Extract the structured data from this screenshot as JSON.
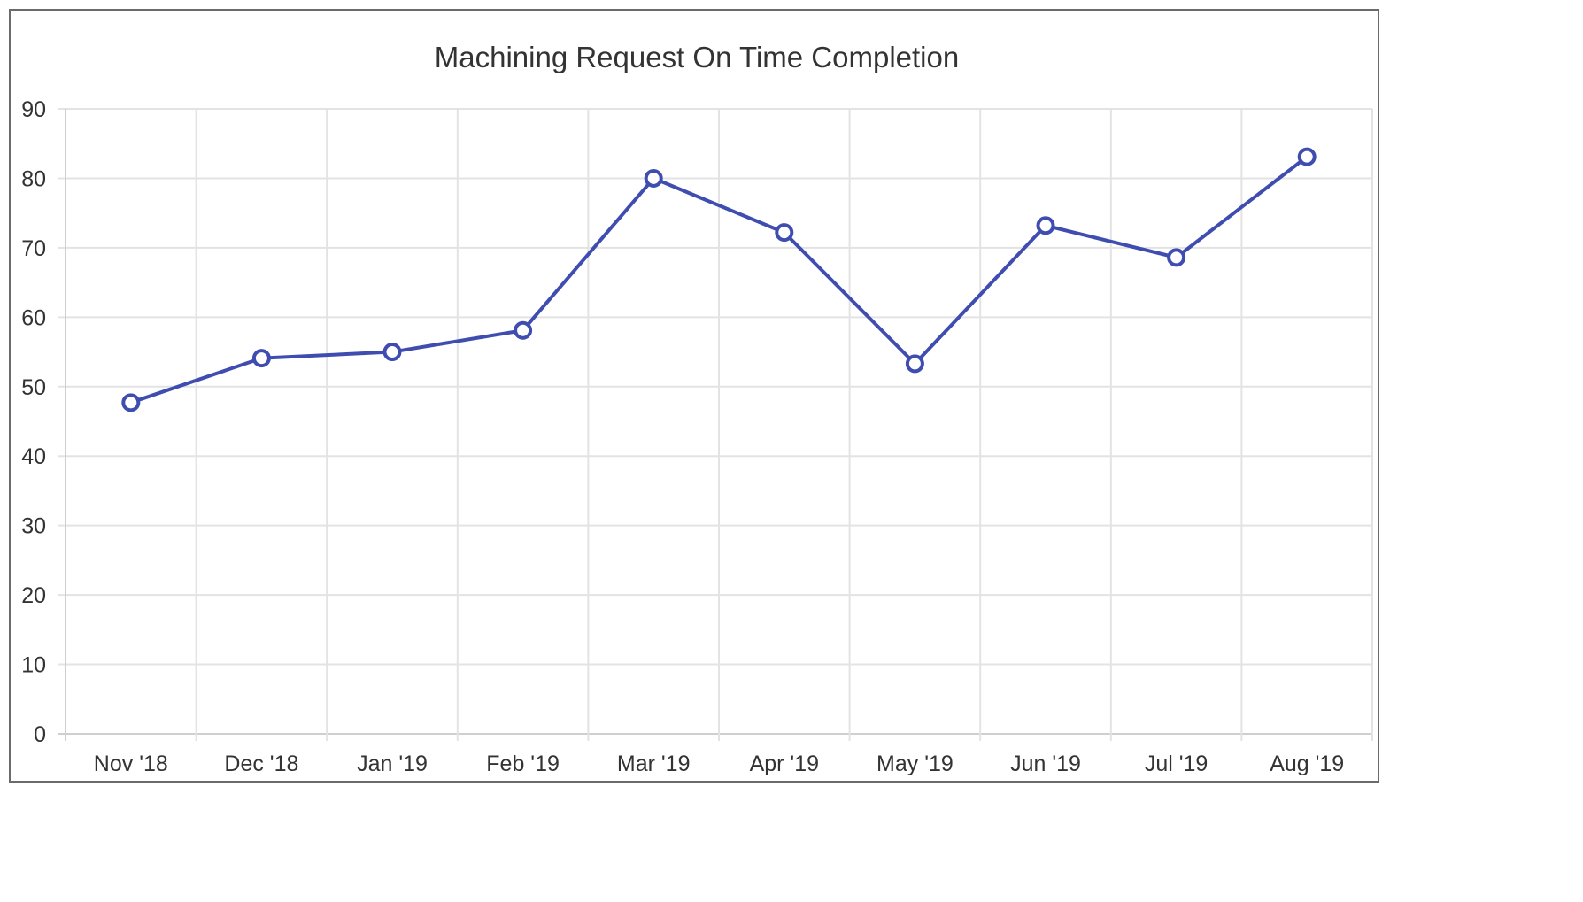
{
  "chart_data": {
    "type": "line",
    "title": "Machining Request On Time Completion",
    "xlabel": "",
    "ylabel": "",
    "categories": [
      "Nov '18",
      "Dec '18",
      "Jan '19",
      "Feb '19",
      "Mar '19",
      "Apr '19",
      "May '19",
      "Jun '19",
      "Jul '19",
      "Aug '19"
    ],
    "series": [
      {
        "values": [
          47.7,
          54.1,
          55,
          58.1,
          80,
          72.2,
          53.3,
          73.2,
          68.6,
          83.1
        ]
      }
    ],
    "ylim": [
      0,
      90
    ],
    "yticks": [
      0,
      10,
      20,
      30,
      40,
      50,
      60,
      70,
      80,
      90
    ],
    "grid": true,
    "legend": "none",
    "line_color": "#3f4db0",
    "marker_fill": "#ffffff"
  }
}
